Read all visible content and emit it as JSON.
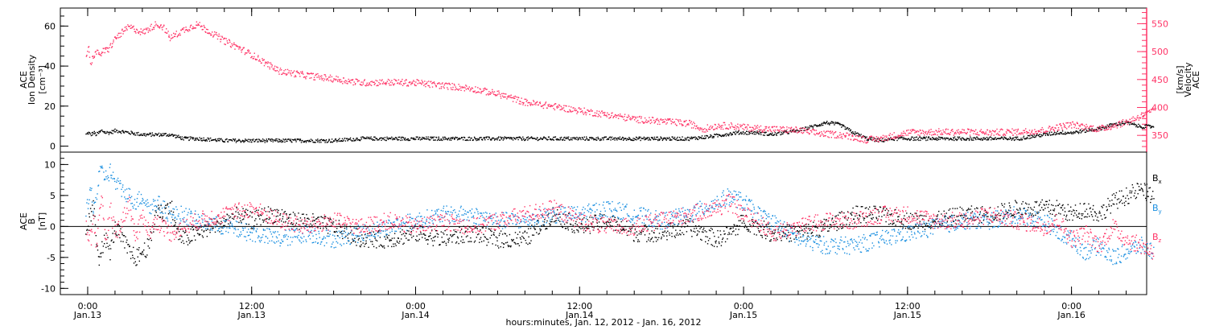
{
  "chart_data": [
    {
      "type": "scatter",
      "ylabel_lines": [
        "ACE",
        "Ion Density",
        "[cm⁻³]"
      ],
      "y2label_lines": [
        "ACE",
        "Velocity",
        "[km/s]"
      ],
      "ylim": [
        -3,
        69
      ],
      "y2lim": [
        320,
        578
      ],
      "yticks": [
        "0",
        "20",
        "40",
        "60"
      ],
      "yticks_values": [
        0,
        20,
        40,
        60
      ],
      "y2ticks": [
        "350",
        "400",
        "450",
        "500",
        "550"
      ],
      "y2ticks_values": [
        350,
        400,
        450,
        500,
        550
      ],
      "series": [
        {
          "color": "#000000",
          "axis": "left",
          "x": [
            -0.15,
            0.0,
            0.2,
            0.4,
            0.6,
            0.8,
            1.0,
            1.3,
            1.6,
            2.0,
            3.0,
            4.0,
            5.0,
            6.0,
            7.0,
            8.0,
            10.0,
            12.0,
            14.0,
            16.0,
            18.0,
            20.0,
            24.0,
            28.0,
            32.0,
            36.0,
            40.0,
            42.0,
            44.0,
            45.5,
            46.5,
            47.5,
            48.0,
            48.5,
            49.0,
            50.0,
            51.0,
            52.0,
            53.0,
            54.0,
            55.0,
            56.0,
            57.0,
            58.0,
            59.0,
            60.0,
            61.0,
            62.0,
            63.0,
            64.0,
            65.0,
            66.0,
            67.0,
            68.0,
            69.0,
            70.0,
            71.0,
            72.0,
            73.0,
            74.0,
            75.0,
            76.0,
            77.0,
            78.0
          ],
          "y": [
            6,
            7,
            6,
            7,
            6,
            7,
            8,
            7,
            7,
            8,
            7,
            6,
            6,
            6,
            4,
            4,
            3,
            3,
            3,
            3,
            3,
            4,
            4,
            4,
            4,
            4,
            4,
            4,
            4,
            5,
            6,
            7,
            7,
            7,
            7,
            6,
            7,
            8,
            10,
            12,
            11,
            7,
            4,
            3,
            4,
            4,
            4,
            4,
            4,
            4,
            4,
            4,
            4,
            4,
            5,
            6,
            7,
            7,
            8,
            9,
            11,
            12,
            10,
            10
          ]
        },
        {
          "color": "#ff3366",
          "axis": "right",
          "x": [
            -0.15,
            0.0,
            0.2,
            0.4,
            0.6,
            0.8,
            1.0,
            1.5,
            2.0,
            3.0,
            3.5,
            4.0,
            5.0,
            5.5,
            6.0,
            7.0,
            8.0,
            9.0,
            10.0,
            11.0,
            12.0,
            13.0,
            14.0,
            16.0,
            18.0,
            20.0,
            22.0,
            24.0,
            26.0,
            28.0,
            30.0,
            32.0,
            34.0,
            36.0,
            38.0,
            40.0,
            42.0,
            44.0,
            45.0,
            46.0,
            47.0,
            48.0,
            50.0,
            52.0,
            53.0,
            54.0,
            55.0,
            56.0,
            57.0,
            58.0,
            60.0,
            62.0,
            64.0,
            66.0,
            68.0,
            70.0,
            71.0,
            72.0,
            74.0,
            75.0,
            76.0,
            77.0,
            78.0
          ],
          "y": [
            495,
            510,
            480,
            495,
            500,
            495,
            500,
            505,
            525,
            545,
            540,
            535,
            550,
            545,
            525,
            540,
            550,
            535,
            520,
            508,
            495,
            480,
            466,
            458,
            452,
            445,
            446,
            445,
            440,
            435,
            425,
            410,
            403,
            395,
            388,
            380,
            376,
            372,
            362,
            368,
            368,
            365,
            362,
            360,
            356,
            353,
            352,
            348,
            343,
            345,
            356,
            357,
            357,
            356,
            357,
            360,
            366,
            370,
            362,
            368,
            375,
            385,
            395
          ]
        }
      ]
    },
    {
      "type": "scatter",
      "ylabel_lines": [
        "ACE",
        "B",
        "[nT]"
      ],
      "ylim": [
        -11,
        12
      ],
      "yticks": [
        "-10",
        "-5",
        "0",
        "5",
        "10"
      ],
      "yticks_values": [
        -10,
        -5,
        0,
        5,
        10
      ],
      "zero_line": true,
      "series": [
        {
          "name": "Bx",
          "color": "#000000",
          "x": [
            -0.15,
            0.2,
            0.4,
            0.6,
            0.8,
            1.0,
            1.3,
            1.6,
            2.0,
            2.5,
            3.0,
            3.5,
            4.0,
            4.5,
            5.0,
            5.5,
            6.0,
            6.5,
            7.0,
            8.0,
            9.0,
            10.0,
            11.0,
            12.0,
            13.0,
            14.0,
            15.0,
            16.0,
            18.0,
            20.0,
            22.0,
            24.0,
            26.0,
            28.0,
            30.0,
            32.0,
            34.0,
            36.0,
            38.0,
            40.0,
            42.0,
            44.0,
            46.0,
            47.0,
            48.0,
            49.0,
            50.0,
            52.0,
            54.0,
            56.0,
            58.0,
            60.0,
            62.0,
            64.0,
            66.0,
            68.0,
            70.0,
            71.0,
            72.0,
            73.0,
            74.0,
            75.0,
            76.0,
            77.0,
            78.0
          ],
          "y": [
            -1,
            2,
            3,
            -2,
            -5,
            -3,
            -2,
            -4,
            0,
            -2,
            -4,
            -5,
            -4,
            -3,
            3,
            2,
            4,
            -1,
            -2,
            -1,
            0,
            1,
            2,
            1,
            2,
            2,
            1,
            1,
            0,
            -2,
            -2,
            -1,
            -2,
            -1,
            -2,
            -2,
            2,
            0,
            1,
            -1,
            -1,
            0,
            -2,
            -1,
            1,
            0,
            -1,
            -1,
            0,
            2,
            2,
            1,
            1,
            2,
            2,
            3,
            3,
            3,
            2,
            3,
            2,
            4,
            5,
            6,
            5
          ]
        },
        {
          "name": "By",
          "color": "#1a8fe0",
          "x": [
            -0.15,
            0.2,
            0.4,
            0.6,
            0.8,
            1.0,
            1.3,
            1.6,
            2.0,
            2.5,
            3.0,
            3.5,
            4.0,
            4.5,
            5.0,
            5.5,
            6.0,
            7.0,
            8.0,
            10.0,
            12.0,
            14.0,
            16.0,
            18.0,
            20.0,
            22.0,
            24.0,
            26.0,
            28.0,
            30.0,
            32.0,
            34.0,
            36.0,
            38.0,
            40.0,
            42.0,
            44.0,
            46.0,
            47.0,
            48.0,
            49.0,
            50.0,
            52.0,
            54.0,
            56.0,
            58.0,
            60.0,
            62.0,
            64.0,
            66.0,
            68.0,
            70.0,
            71.0,
            72.0,
            73.0,
            74.0,
            75.0,
            76.0,
            77.0,
            78.0
          ],
          "y": [
            2,
            6,
            3,
            5,
            8,
            9,
            8,
            9,
            7,
            6,
            5,
            4,
            5,
            3,
            4,
            3,
            2,
            2,
            1,
            0,
            -1,
            -2,
            -1,
            -2,
            -1,
            0,
            1,
            2,
            2,
            1,
            1,
            2,
            2,
            3,
            2,
            1,
            2,
            4,
            5,
            4,
            2,
            1,
            -2,
            -3,
            -3,
            -2,
            -1,
            0,
            1,
            1,
            2,
            1,
            -1,
            -2,
            -4,
            -3,
            -5,
            -4,
            -3,
            -4
          ]
        },
        {
          "name": "Bz",
          "color": "#ff3366",
          "x": [
            -0.15,
            0.2,
            0.4,
            0.6,
            0.8,
            1.0,
            1.3,
            1.6,
            2.0,
            2.5,
            3.0,
            3.5,
            4.0,
            4.5,
            5.0,
            5.5,
            6.0,
            7.0,
            8.0,
            10.0,
            12.0,
            14.0,
            16.0,
            18.0,
            20.0,
            22.0,
            24.0,
            26.0,
            28.0,
            30.0,
            32.0,
            34.0,
            36.0,
            38.0,
            40.0,
            42.0,
            44.0,
            46.0,
            47.0,
            48.0,
            49.0,
            50.0,
            52.0,
            54.0,
            56.0,
            58.0,
            60.0,
            62.0,
            64.0,
            66.0,
            68.0,
            70.0,
            71.0,
            72.0,
            73.0,
            74.0,
            75.0,
            76.0,
            77.0,
            78.0
          ],
          "y": [
            0,
            -2,
            2,
            -3,
            1,
            4,
            -2,
            3,
            -1,
            1,
            4,
            -2,
            2,
            -1,
            1,
            0,
            -1,
            0,
            1,
            2,
            3,
            1,
            0,
            1,
            0,
            1,
            0,
            1,
            0,
            1,
            2,
            3,
            1,
            0,
            0,
            1,
            2,
            3,
            4,
            2,
            1,
            -1,
            0,
            1,
            1,
            2,
            2,
            1,
            1,
            2,
            1,
            0,
            1,
            -2,
            -1,
            -3,
            0,
            -2,
            -3,
            -4
          ]
        }
      ]
    }
  ],
  "legend": {
    "bx": "B",
    "bx_sub": "x",
    "by": "B",
    "by_sub": "y",
    "bz": "B",
    "bz_sub": "z"
  },
  "x_axis": {
    "xlim": [
      -2.0,
      77.5
    ],
    "ticks": [
      {
        "x": 0,
        "time": "0:00",
        "date": "Jan.13"
      },
      {
        "x": 12,
        "time": "12:00",
        "date": "Jan.13"
      },
      {
        "x": 24,
        "time": "0:00",
        "date": "Jan.14"
      },
      {
        "x": 36,
        "time": "12:00",
        "date": "Jan.14"
      },
      {
        "x": 48,
        "time": "0:00",
        "date": "Jan.15"
      },
      {
        "x": 60,
        "time": "12:00",
        "date": "Jan.15"
      },
      {
        "x": 72,
        "time": "0:00",
        "date": "Jan.16"
      }
    ],
    "label": "hours:minutes, Jan. 12, 2012 - Jan. 16, 2012"
  },
  "colors": {
    "black": "#000000",
    "red": "#ff3366",
    "blue": "#1a8fe0"
  }
}
